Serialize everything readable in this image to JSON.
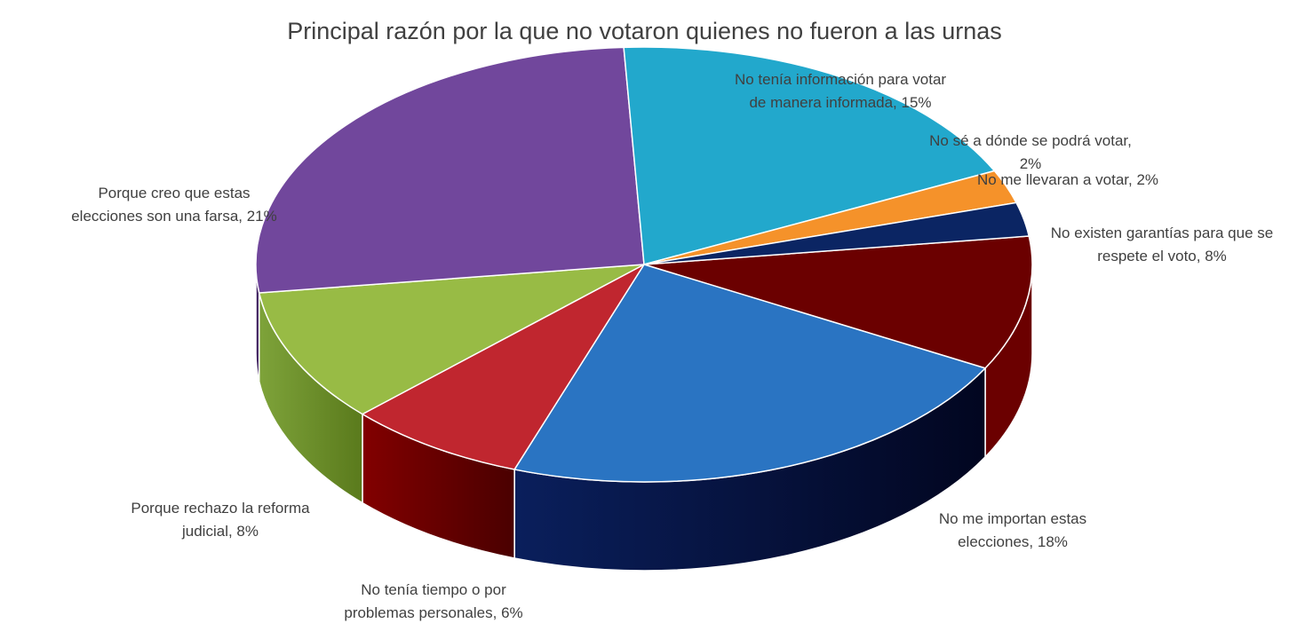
{
  "chart_data": {
    "type": "pie",
    "title": "Principal razón por la que no votaron quienes no fueron a las urnas",
    "slices": [
      {
        "label_lines": [
          "No existen garantías para que se",
          "respete el voto, 8%"
        ],
        "value": 8,
        "color": "#6b0000"
      },
      {
        "label_lines": [
          "No me importan estas",
          "elecciones, 18%"
        ],
        "value": 18,
        "color": "#2a74c2"
      },
      {
        "label_lines": [
          "No tenía tiempo o por",
          "problemas personales, 6%"
        ],
        "value": 6,
        "color": "#c0262f"
      },
      {
        "label_lines": [
          "Porque rechazo la reforma",
          "judicial, 8%"
        ],
        "value": 8,
        "color": "#98bb45"
      },
      {
        "label_lines": [
          "Porque creo que estas",
          "elecciones son una farsa, 21%"
        ],
        "value": 21,
        "color": "#71479c"
      },
      {
        "label_lines": [
          "No tenía información para votar",
          "de manera informada, 15%"
        ],
        "value": 15,
        "color": "#22a8cc"
      },
      {
        "label_lines": [
          "No sé a dónde se podrá votar,",
          "2%"
        ],
        "value": 2,
        "color": "#f5922a"
      },
      {
        "label_lines": [
          "No me llevaran a votar, 2%"
        ],
        "value": 2,
        "color": "#0b2563"
      }
    ]
  }
}
